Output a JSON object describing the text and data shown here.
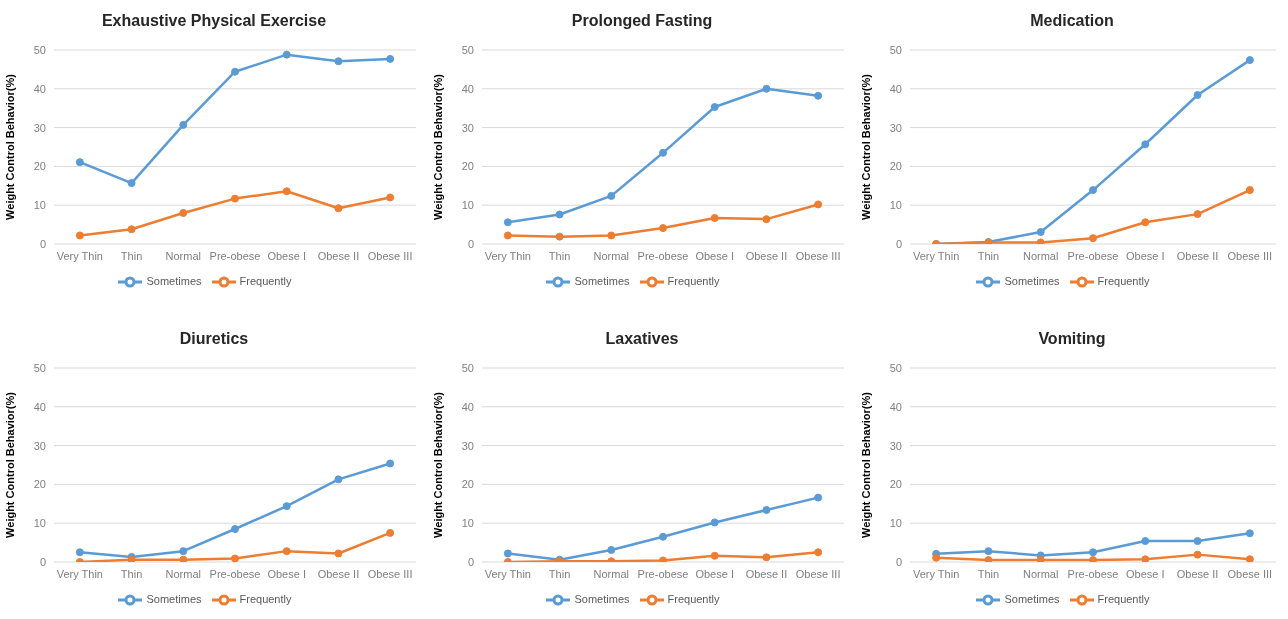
{
  "chart_data": [
    {
      "type": "line",
      "title": "Exhaustive Physical Exercise",
      "ylabel": "Weight Control Behavior(%)",
      "categories": [
        "Very Thin",
        "Thin",
        "Normal",
        "Pre-obese",
        "Obese I",
        "Obese II",
        "Obese III"
      ],
      "series": [
        {
          "name": "Sometimes",
          "color": "#5b9bd5",
          "values": [
            21.1,
            15.7,
            30.7,
            44.4,
            48.8,
            47.1,
            47.7
          ]
        },
        {
          "name": "Frequently",
          "color": "#ed7d31",
          "values": [
            2.2,
            3.8,
            8.0,
            11.7,
            13.6,
            9.2,
            12.0
          ]
        }
      ],
      "ylim": [
        0,
        50
      ],
      "yticks": [
        0,
        10,
        20,
        30,
        40,
        50
      ],
      "grid": "y",
      "legend": "bottom",
      "marker": "circle"
    },
    {
      "type": "line",
      "title": "Prolonged Fasting",
      "ylabel": "Weight Control Behavior(%)",
      "categories": [
        "Very Thin",
        "Thin",
        "Normal",
        "Pre-obese",
        "Obese I",
        "Obese II",
        "Obese III"
      ],
      "series": [
        {
          "name": "Sometimes",
          "color": "#5b9bd5",
          "values": [
            5.6,
            7.6,
            12.4,
            23.5,
            35.3,
            40.0,
            38.2
          ]
        },
        {
          "name": "Frequently",
          "color": "#ed7d31",
          "values": [
            2.2,
            1.9,
            2.2,
            4.1,
            6.7,
            6.4,
            10.2
          ]
        }
      ],
      "ylim": [
        0,
        50
      ],
      "yticks": [
        0,
        10,
        20,
        30,
        40,
        50
      ],
      "grid": "y",
      "legend": "bottom",
      "marker": "circle"
    },
    {
      "type": "line",
      "title": "Medication",
      "ylabel": "Weight Control Behavior(%)",
      "categories": [
        "Very Thin",
        "Thin",
        "Normal",
        "Pre-obese",
        "Obese I",
        "Obese II",
        "Obese III"
      ],
      "series": [
        {
          "name": "Sometimes",
          "color": "#5b9bd5",
          "values": [
            0,
            0.5,
            3.1,
            13.9,
            25.7,
            38.4,
            47.4
          ]
        },
        {
          "name": "Frequently",
          "color": "#ed7d31",
          "values": [
            0,
            0.4,
            0.4,
            1.5,
            5.6,
            7.7,
            13.9
          ]
        }
      ],
      "ylim": [
        0,
        50
      ],
      "yticks": [
        0,
        10,
        20,
        30,
        40,
        50
      ],
      "grid": "y",
      "legend": "bottom",
      "marker": "circle"
    },
    {
      "type": "line",
      "title": "Diuretics",
      "ylabel": "Weight Control Behavior(%)",
      "categories": [
        "Very Thin",
        "Thin",
        "Normal",
        "Pre-obese",
        "Obese I",
        "Obese II",
        "Obese III"
      ],
      "series": [
        {
          "name": "Sometimes",
          "color": "#5b9bd5",
          "values": [
            2.5,
            1.3,
            2.8,
            8.5,
            14.4,
            21.3,
            25.4
          ]
        },
        {
          "name": "Frequently",
          "color": "#ed7d31",
          "values": [
            0,
            0.6,
            0.6,
            0.9,
            2.8,
            2.2,
            7.5
          ]
        }
      ],
      "ylim": [
        0,
        50
      ],
      "yticks": [
        0,
        10,
        20,
        30,
        40,
        50
      ],
      "grid": "y",
      "legend": "bottom",
      "marker": "circle"
    },
    {
      "type": "line",
      "title": "Laxatives",
      "ylabel": "Weight Control Behavior(%)",
      "categories": [
        "Very Thin",
        "Thin",
        "Normal",
        "Pre-obese",
        "Obese I",
        "Obese II",
        "Obese III"
      ],
      "series": [
        {
          "name": "Sometimes",
          "color": "#5b9bd5",
          "values": [
            2.2,
            0.6,
            3.1,
            6.5,
            10.2,
            13.4,
            16.6
          ]
        },
        {
          "name": "Frequently",
          "color": "#ed7d31",
          "values": [
            0,
            0.2,
            0.2,
            0.4,
            1.6,
            1.2,
            2.5
          ]
        }
      ],
      "ylim": [
        0,
        50
      ],
      "yticks": [
        0,
        10,
        20,
        30,
        40,
        50
      ],
      "grid": "y",
      "legend": "bottom",
      "marker": "circle"
    },
    {
      "type": "line",
      "title": "Vomiting",
      "ylabel": "Weight Control Behavior(%)",
      "categories": [
        "Very Thin",
        "Thin",
        "Normal",
        "Pre-obese",
        "Obese I",
        "Obese II",
        "Obese III"
      ],
      "series": [
        {
          "name": "Sometimes",
          "color": "#5b9bd5",
          "values": [
            2.1,
            2.8,
            1.7,
            2.5,
            5.4,
            5.4,
            7.4
          ]
        },
        {
          "name": "Frequently",
          "color": "#ed7d31",
          "values": [
            1.1,
            0.5,
            0.5,
            0.5,
            0.7,
            1.9,
            0.7
          ]
        }
      ],
      "ylim": [
        0,
        50
      ],
      "yticks": [
        0,
        10,
        20,
        30,
        40,
        50
      ],
      "grid": "y",
      "legend": "bottom",
      "marker": "circle"
    }
  ]
}
